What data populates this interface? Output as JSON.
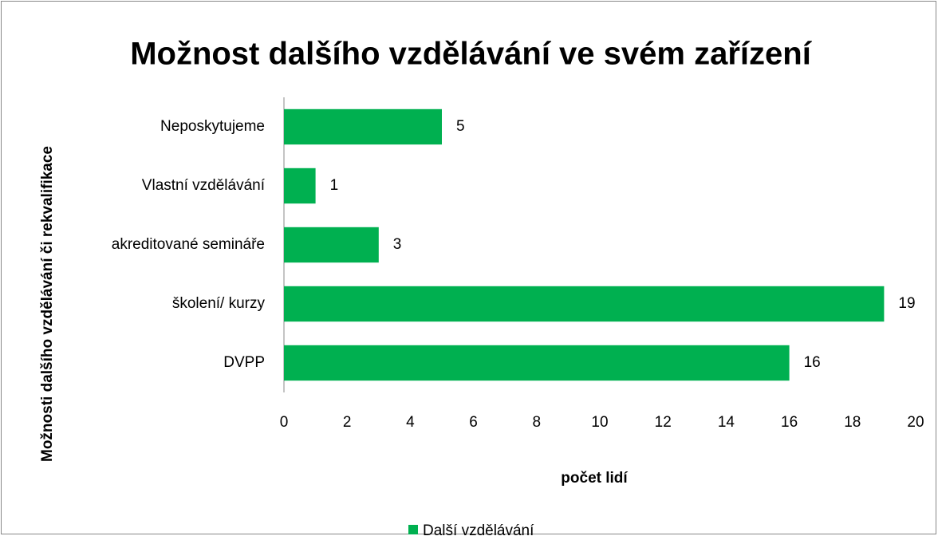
{
  "chart_data": {
    "type": "bar",
    "orientation": "horizontal",
    "title": "Možnost dalšího vzdělávání ve svém zařízení",
    "x_label": "počet lidí",
    "y_label": "Možnosti dalšího vzdělávání či rekvalifikace",
    "categories": [
      "Neposkytujeme",
      "Vlastní vzdělávání",
      "akreditované semináře",
      "školení/ kurzy",
      "DVPP"
    ],
    "series": [
      {
        "name": "Další vzdělávání",
        "color": "#00b050",
        "values": [
          5,
          1,
          3,
          19,
          16
        ]
      }
    ],
    "xlim": [
      0,
      20
    ],
    "xticks": [
      0,
      2,
      4,
      6,
      8,
      10,
      12,
      14,
      16,
      18,
      20
    ],
    "grid": false,
    "legend": "bottom"
  }
}
